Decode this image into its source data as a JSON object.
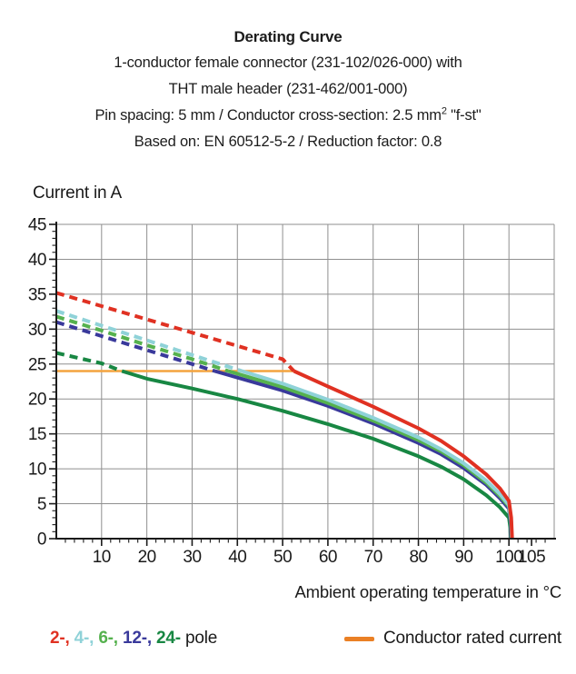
{
  "header": {
    "title": "Derating Curve",
    "line2": "1-conductor female connector (231-102/026-000) with",
    "line3": "THT male header (231-462/001-000)",
    "line4_pre": "Pin spacing: 5 mm / Conductor cross-section: 2.5 mm",
    "line4_sup": "2",
    "line4_post": " \"f-st\"",
    "line5": "Based on: EN 60512-5-2 / Reduction factor: 0.8"
  },
  "chart_data": {
    "type": "line",
    "title": "Derating Curve",
    "ylabel": "Current in A",
    "xlabel": "Ambient operating temperature in °C",
    "xlim": [
      0,
      110
    ],
    "ylim": [
      0,
      45
    ],
    "x_major_ticks": [
      10,
      20,
      30,
      40,
      50,
      60,
      70,
      80,
      90,
      100,
      105
    ],
    "y_major_ticks": [
      0,
      5,
      10,
      15,
      20,
      25,
      30,
      35,
      40,
      45
    ],
    "x_minor_step": 2,
    "y_minor_step": 1,
    "grid": true,
    "line_style_rule": "dashed above rated current, solid below",
    "rated_current": {
      "label": "Conductor rated current",
      "value": 24,
      "x_start": 0,
      "x_end": 52.5,
      "color": "#F4A43F"
    },
    "series": [
      {
        "name": "24-pole",
        "color": "#188743",
        "points": [
          [
            0,
            26.6
          ],
          [
            10,
            25.1
          ],
          [
            14.5,
            24
          ],
          [
            20,
            22.9
          ],
          [
            30,
            21.5
          ],
          [
            40,
            20.0
          ],
          [
            50,
            18.3
          ],
          [
            60,
            16.4
          ],
          [
            70,
            14.3
          ],
          [
            80,
            11.8
          ],
          [
            85,
            10.3
          ],
          [
            90,
            8.5
          ],
          [
            95,
            6.2
          ],
          [
            98,
            4.5
          ],
          [
            100,
            3.0
          ],
          [
            100.3,
            1.5
          ],
          [
            100.4,
            0
          ]
        ]
      },
      {
        "name": "12-pole",
        "color": "#39399B",
        "points": [
          [
            0,
            31.0
          ],
          [
            10,
            29.0
          ],
          [
            20,
            27.0
          ],
          [
            30,
            25.0
          ],
          [
            35,
            24
          ],
          [
            50,
            21.2
          ],
          [
            60,
            19.0
          ],
          [
            70,
            16.5
          ],
          [
            80,
            13.7
          ],
          [
            85,
            12.1
          ],
          [
            90,
            10.1
          ],
          [
            95,
            7.7
          ],
          [
            98,
            5.8
          ],
          [
            100,
            4.3
          ],
          [
            100.4,
            2.1
          ],
          [
            100.5,
            0
          ]
        ]
      },
      {
        "name": "6-pole",
        "color": "#55B14E",
        "points": [
          [
            0,
            31.8
          ],
          [
            10,
            29.8
          ],
          [
            20,
            27.7
          ],
          [
            30,
            25.7
          ],
          [
            38,
            24
          ],
          [
            50,
            21.7
          ],
          [
            60,
            19.4
          ],
          [
            70,
            16.9
          ],
          [
            80,
            14.1
          ],
          [
            85,
            12.5
          ],
          [
            90,
            10.5
          ],
          [
            95,
            8.0
          ],
          [
            98,
            6.1
          ],
          [
            100,
            4.6
          ],
          [
            100.5,
            2.3
          ],
          [
            100.6,
            0
          ]
        ]
      },
      {
        "name": "4-pole",
        "color": "#8FD2D8",
        "points": [
          [
            0,
            32.6
          ],
          [
            10,
            30.5
          ],
          [
            20,
            28.4
          ],
          [
            30,
            26.3
          ],
          [
            41,
            24
          ],
          [
            50,
            22.2
          ],
          [
            60,
            19.9
          ],
          [
            70,
            17.3
          ],
          [
            80,
            14.5
          ],
          [
            85,
            12.8
          ],
          [
            90,
            10.8
          ],
          [
            95,
            8.3
          ],
          [
            98,
            6.4
          ],
          [
            100,
            4.8
          ],
          [
            100.5,
            2.5
          ],
          [
            100.6,
            0
          ]
        ]
      },
      {
        "name": "2-pole",
        "color": "#E03122",
        "points": [
          [
            0,
            35.2
          ],
          [
            10,
            33.3
          ],
          [
            20,
            31.4
          ],
          [
            30,
            29.5
          ],
          [
            40,
            27.6
          ],
          [
            50,
            25.7
          ],
          [
            52.5,
            24
          ],
          [
            60,
            21.8
          ],
          [
            70,
            18.9
          ],
          [
            80,
            15.8
          ],
          [
            85,
            14.0
          ],
          [
            90,
            11.8
          ],
          [
            95,
            9.2
          ],
          [
            98,
            7.2
          ],
          [
            100,
            5.4
          ],
          [
            100.5,
            3.0
          ],
          [
            100.7,
            0
          ]
        ]
      }
    ]
  },
  "legend": {
    "pole_items": [
      {
        "label": "2-",
        "color": "#E03122"
      },
      {
        "label": "4-",
        "color": "#8FD2D8"
      },
      {
        "label": "6-",
        "color": "#55B14E"
      },
      {
        "label": "12-",
        "color": "#39399B"
      },
      {
        "label": "24-",
        "color": "#188743"
      }
    ],
    "separator": ", ",
    "pole_suffix": " pole",
    "rated_label": "Conductor rated current",
    "rated_swatch_color": "#EA8025"
  },
  "colors": {
    "grid": "#8F8F8F",
    "axis": "#1a1a1a",
    "text": "#1a1a1a"
  }
}
